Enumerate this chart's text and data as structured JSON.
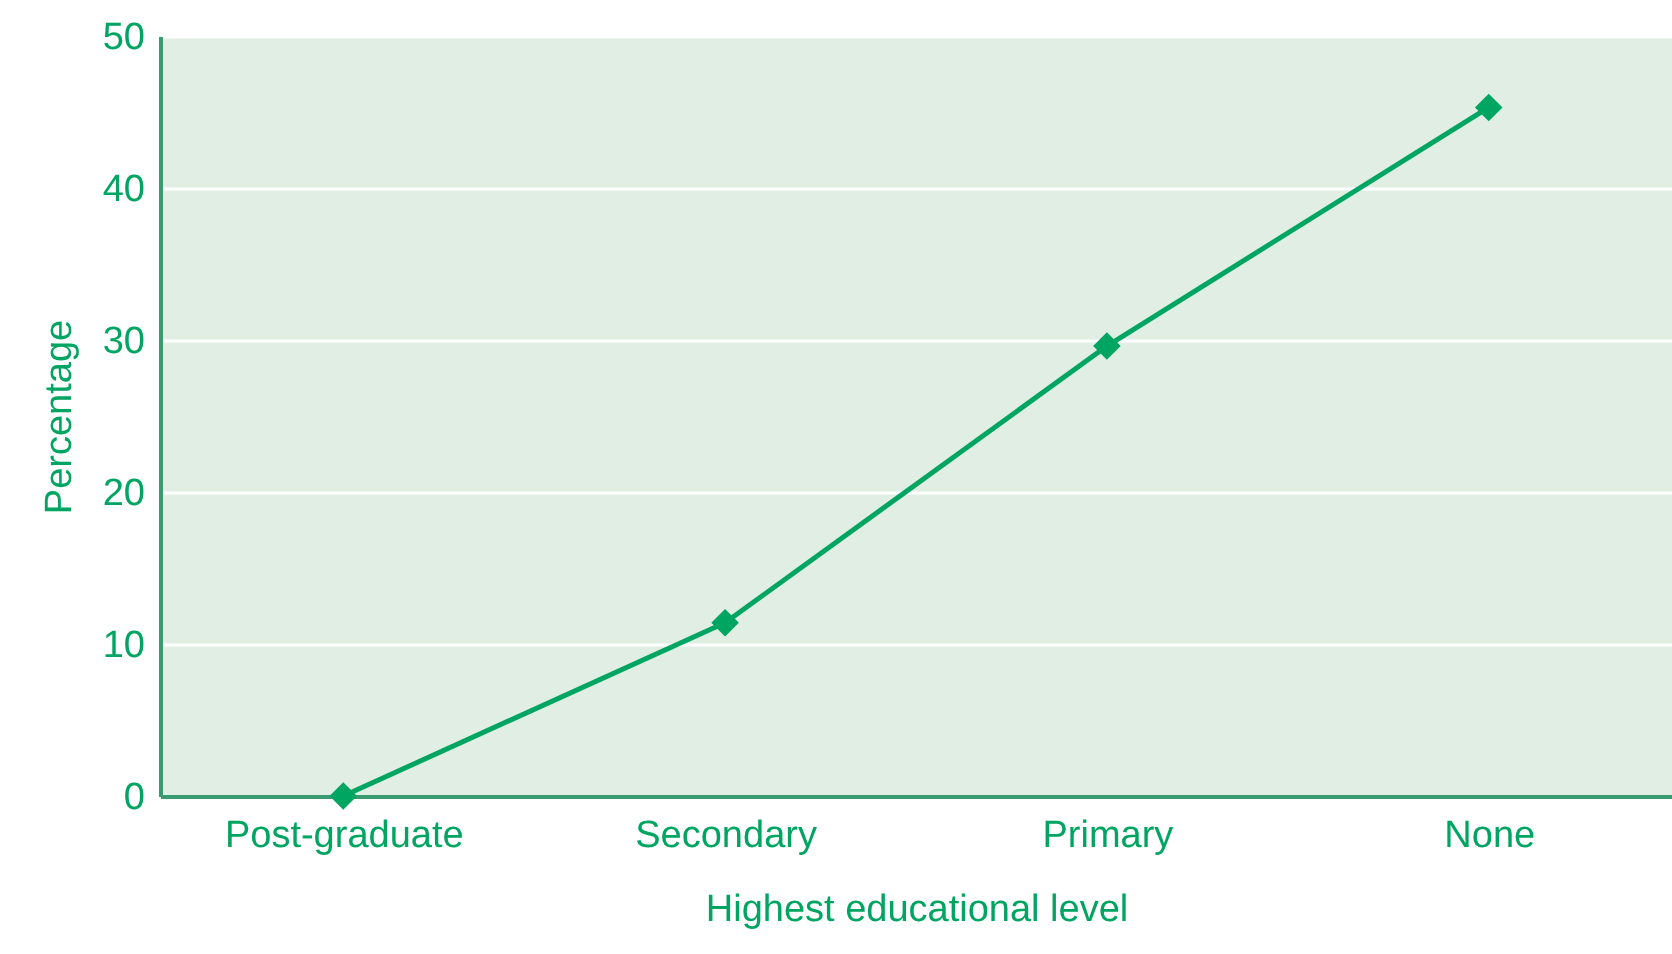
{
  "chart_data": {
    "type": "line",
    "xlabel": "Highest educational level",
    "ylabel": "Percentage",
    "categories": [
      "Post-graduate",
      "Secondary",
      "Primary",
      "None"
    ],
    "series": [
      {
        "color": "#00a562",
        "values": [
          0,
          11.4,
          29.6,
          45.3
        ]
      }
    ],
    "ylim": [
      0,
      50
    ],
    "yticks": [
      0,
      10,
      20,
      30,
      40,
      50
    ],
    "grid": "y",
    "marker": "diamond",
    "line_style": "solid"
  }
}
